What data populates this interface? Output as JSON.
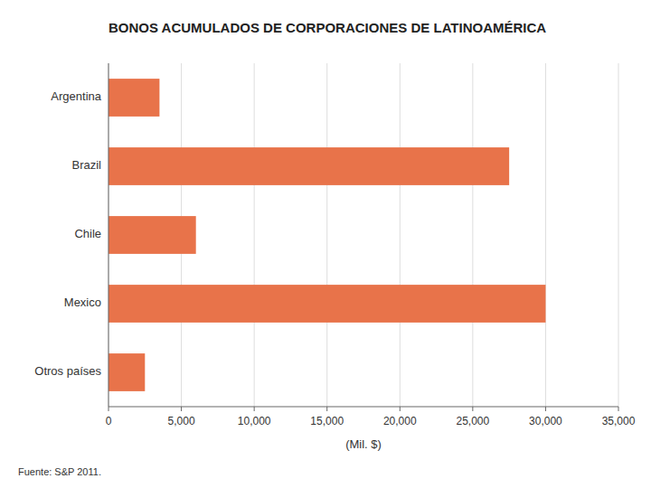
{
  "chart_data": {
    "type": "bar",
    "orientation": "horizontal",
    "title": "BONOS ACUMULADOS DE CORPORACIONES DE LATINOAMÉRICA",
    "categories": [
      "Argentina",
      "Brazil",
      "Chile",
      "Mexico",
      "Otros países"
    ],
    "values": [
      3500,
      27500,
      6000,
      30000,
      2500
    ],
    "color": "#E8734A",
    "xlabel": "(Mil. $)",
    "xlim": [
      0,
      35000
    ],
    "xticks": [
      0,
      {
        "value": 5000,
        "label": "5,000"
      },
      {
        "value": 10000,
        "label": "10,000"
      },
      {
        "value": 15000,
        "label": "15,000"
      },
      {
        "value": 20000,
        "label": "20,000"
      },
      {
        "value": 25000,
        "label": "25,000"
      },
      {
        "value": 30000,
        "label": "30,000"
      },
      {
        "value": 35000,
        "label": "35,000"
      }
    ],
    "grid": true,
    "source": "Fuente: S&P 2011."
  }
}
